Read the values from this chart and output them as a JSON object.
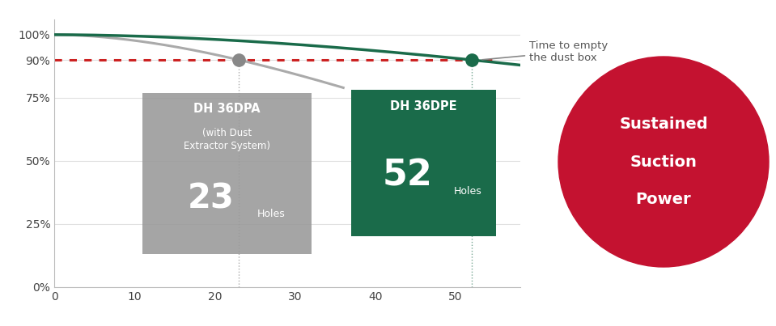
{
  "bg_color": "#ffffff",
  "line_dpa_color": "#aaaaaa",
  "line_dpe_color": "#1a6b4a",
  "dashed_line_color": "#cc2222",
  "dpa_hole": 23,
  "dpe_hole": 52,
  "threshold_pct": 90,
  "xlim": [
    0,
    58
  ],
  "ylim": [
    0,
    106
  ],
  "xticks": [
    0,
    10,
    20,
    30,
    40,
    50
  ],
  "ytick_labels": [
    "0%",
    "25%",
    "50%",
    "75%",
    "90%",
    "100%"
  ],
  "ytick_vals": [
    0,
    25,
    50,
    75,
    90,
    100
  ],
  "box_dpa_color": "#999999",
  "box_dpe_color": "#1a6b4a",
  "circle_color": "#c41230",
  "circle_text_lines": [
    "Sustained",
    "Suction",
    "Power"
  ]
}
